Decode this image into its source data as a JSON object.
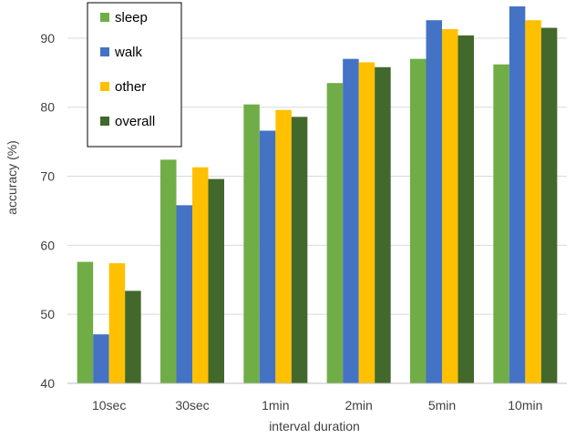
{
  "chart_data": {
    "type": "bar",
    "title": "",
    "xlabel": "interval duration",
    "ylabel": "accuracy (%)",
    "ylim": [
      40,
      95
    ],
    "yticks": [
      40,
      50,
      60,
      70,
      80,
      90
    ],
    "grid": true,
    "legend_position": "top-left",
    "categories": [
      "10sec",
      "30sec",
      "1min",
      "2min",
      "5min",
      "10min"
    ],
    "series": [
      {
        "name": "sleep",
        "color": "#70ad47",
        "values": [
          57.6,
          72.4,
          80.4,
          83.5,
          87.0,
          86.2
        ]
      },
      {
        "name": "walk",
        "color": "#4472c4",
        "values": [
          47.1,
          65.8,
          76.6,
          87.0,
          92.6,
          94.6
        ]
      },
      {
        "name": "other",
        "color": "#ffc000",
        "values": [
          57.4,
          71.3,
          79.6,
          86.5,
          91.3,
          92.6
        ]
      },
      {
        "name": "overall",
        "color": "#43682b",
        "values": [
          53.4,
          69.6,
          78.6,
          85.8,
          90.4,
          91.5
        ]
      }
    ]
  }
}
